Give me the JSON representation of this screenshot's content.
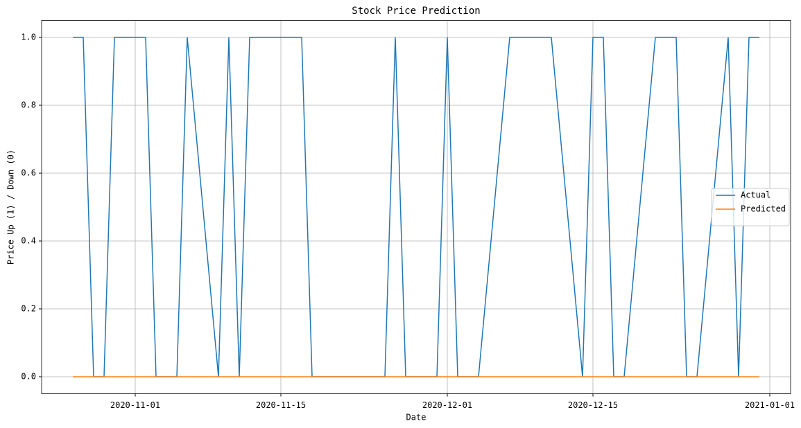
{
  "chart_data": {
    "type": "line",
    "title": "Stock Price Prediction",
    "x_label": "Date",
    "y_label": "Price Up (1) / Down (0)",
    "x": [
      "2020-10-26",
      "2020-10-27",
      "2020-10-28",
      "2020-10-29",
      "2020-10-30",
      "2020-11-02",
      "2020-11-03",
      "2020-11-04",
      "2020-11-05",
      "2020-11-06",
      "2020-11-09",
      "2020-11-10",
      "2020-11-11",
      "2020-11-12",
      "2020-11-13",
      "2020-11-16",
      "2020-11-17",
      "2020-11-18",
      "2020-11-19",
      "2020-11-20",
      "2020-11-23",
      "2020-11-24",
      "2020-11-25",
      "2020-11-26",
      "2020-11-27",
      "2020-11-30",
      "2020-12-01",
      "2020-12-02",
      "2020-12-03",
      "2020-12-04",
      "2020-12-07",
      "2020-12-08",
      "2020-12-09",
      "2020-12-10",
      "2020-12-11",
      "2020-12-14",
      "2020-12-15",
      "2020-12-16",
      "2020-12-17",
      "2020-12-18",
      "2020-12-21",
      "2020-12-22",
      "2020-12-23",
      "2020-12-24",
      "2020-12-25",
      "2020-12-28",
      "2020-12-29",
      "2020-12-30",
      "2020-12-31"
    ],
    "series": [
      {
        "name": "Actual",
        "color": "#1f77b4",
        "values": [
          1,
          1,
          0,
          0,
          1,
          1,
          0,
          0,
          0,
          1,
          0,
          1,
          0,
          1,
          1,
          1,
          1,
          0,
          0,
          0,
          0,
          0,
          0,
          1,
          0,
          0,
          1,
          0,
          0,
          0,
          1,
          1,
          1,
          1,
          1,
          0,
          1,
          1,
          0,
          0,
          1,
          1,
          1,
          0,
          0,
          1,
          0,
          1,
          1
        ]
      },
      {
        "name": "Predicted",
        "color": "#ff7f0e",
        "values": [
          0,
          0,
          0,
          0,
          0,
          0,
          0,
          0,
          0,
          0,
          0,
          0,
          0,
          0,
          0,
          0,
          0,
          0,
          0,
          0,
          0,
          0,
          0,
          0,
          0,
          0,
          0,
          0,
          0,
          0,
          0,
          0,
          0,
          0,
          0,
          0,
          0,
          0,
          0,
          0,
          0,
          0,
          0,
          0,
          0,
          0,
          0,
          0,
          0
        ]
      }
    ],
    "xlim": [
      "2020-10-23",
      "2021-01-03"
    ],
    "xticks": [
      "2020-11-01",
      "2020-11-15",
      "2020-12-01",
      "2020-12-15",
      "2021-01-01"
    ],
    "ylim": [
      -0.05,
      1.05
    ],
    "yticks": [
      {
        "value": 0,
        "label": "0.0"
      },
      {
        "value": 0.2,
        "label": "0.2"
      },
      {
        "value": 0.4,
        "label": "0.4"
      },
      {
        "value": 0.6,
        "label": "0.6"
      },
      {
        "value": 0.8,
        "label": "0.8"
      },
      {
        "value": 1,
        "label": "1.0"
      }
    ],
    "grid": true,
    "legend": "center right"
  }
}
